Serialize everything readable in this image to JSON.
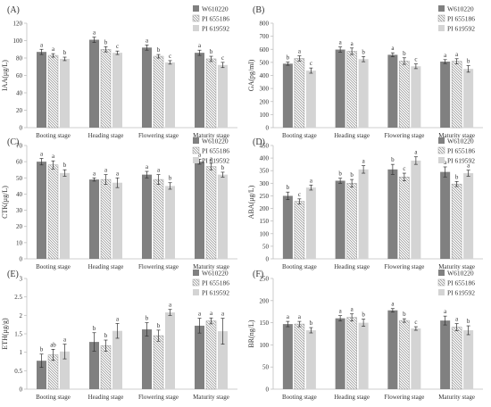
{
  "legend_labels": [
    "W610220",
    "PI 655186",
    "PI 619592"
  ],
  "chart_data": [
    {
      "panel": "(A)",
      "type": "bar",
      "categories": [
        "Booting stage",
        "Heading stage",
        "Flowering stage",
        "Maturity stage"
      ],
      "ylabel": "IAA(μg/L)",
      "ylim": [
        0,
        120
      ],
      "yticks": [
        0,
        20,
        40,
        60,
        80,
        100,
        120
      ],
      "legend": "top-right",
      "series": [
        {
          "name": "W610220",
          "values": [
            87,
            101,
            92,
            86
          ],
          "errors": [
            3,
            3,
            3,
            3
          ],
          "letters": [
            "a",
            "a",
            "a",
            "a"
          ]
        },
        {
          "name": "PI 655186",
          "values": [
            83,
            90,
            82,
            79
          ],
          "errors": [
            2,
            3,
            2,
            3
          ],
          "letters": [
            "a",
            "b",
            "b",
            "b"
          ]
        },
        {
          "name": "PI 619592",
          "values": [
            79,
            86,
            75,
            72
          ],
          "errors": [
            2,
            2,
            2,
            3
          ],
          "letters": [
            "b",
            "c",
            "c",
            "c"
          ]
        }
      ]
    },
    {
      "panel": "(B)",
      "type": "bar",
      "categories": [
        "Booting stage",
        "Heading stage",
        "Flowering stage",
        "Maturity stage"
      ],
      "ylabel": "GA(pg/ml)",
      "ylim": [
        0,
        800
      ],
      "yticks": [
        0,
        100,
        200,
        300,
        400,
        500,
        600,
        700,
        800
      ],
      "legend": "top-right",
      "series": [
        {
          "name": "W610220",
          "values": [
            490,
            598,
            558,
            506
          ],
          "errors": [
            12,
            20,
            15,
            15
          ],
          "letters": [
            "b",
            "a",
            "a",
            "a"
          ]
        },
        {
          "name": "PI 655186",
          "values": [
            530,
            585,
            510,
            508
          ],
          "errors": [
            20,
            25,
            25,
            20
          ],
          "letters": [
            "a",
            "a",
            "b",
            "a"
          ]
        },
        {
          "name": "PI 619592",
          "values": [
            437,
            525,
            470,
            450
          ],
          "errors": [
            20,
            20,
            18,
            25
          ],
          "letters": [
            "c",
            "b",
            "c",
            "b"
          ]
        }
      ]
    },
    {
      "panel": "(C)",
      "type": "bar",
      "categories": [
        "Booting stage",
        "Heading stage",
        "Flowering stage",
        "Maturity stage"
      ],
      "ylabel": "CTK(μg/L)",
      "ylim": [
        0,
        70
      ],
      "yticks": [
        0,
        10,
        20,
        30,
        40,
        50,
        60,
        70
      ],
      "legend": "top-right",
      "series": [
        {
          "name": "W610220",
          "values": [
            60,
            49,
            52,
            60
          ],
          "errors": [
            2,
            1,
            2,
            1.5
          ],
          "letters": [
            "a",
            "a",
            "a",
            "a"
          ]
        },
        {
          "name": "PI 655186",
          "values": [
            58,
            49,
            49,
            57
          ],
          "errors": [
            2.5,
            3,
            3,
            2
          ],
          "letters": [
            "a",
            "a",
            "a",
            "a"
          ]
        },
        {
          "name": "PI 619592",
          "values": [
            53,
            47,
            45,
            52
          ],
          "errors": [
            2,
            3,
            2,
            1.5
          ],
          "letters": [
            "b",
            "a",
            "b",
            "b"
          ]
        }
      ]
    },
    {
      "panel": "(D)",
      "type": "bar",
      "categories": [
        "Booting stage",
        "Heading stage",
        "Flowering stage",
        "Maturity stage"
      ],
      "ylabel": "ABA(μg/L)",
      "ylim": [
        0,
        450
      ],
      "yticks": [
        0,
        50,
        100,
        150,
        200,
        250,
        300,
        350,
        400,
        450
      ],
      "legend": "top-right",
      "series": [
        {
          "name": "W610220",
          "values": [
            250,
            310,
            355,
            345
          ],
          "errors": [
            15,
            10,
            20,
            20
          ],
          "letters": [
            "b",
            "b",
            "b",
            "a"
          ]
        },
        {
          "name": "PI 655186",
          "values": [
            228,
            300,
            325,
            297
          ],
          "errors": [
            10,
            15,
            15,
            10
          ],
          "letters": [
            "c",
            "b",
            "c",
            "b"
          ]
        },
        {
          "name": "PI 619592",
          "values": [
            283,
            355,
            390,
            340
          ],
          "errors": [
            10,
            15,
            15,
            12
          ],
          "letters": [
            "a",
            "a",
            "a",
            "a"
          ]
        }
      ]
    },
    {
      "panel": "(E)",
      "type": "bar",
      "categories": [
        "Booting stage",
        "Heading stage",
        "Flowering stage",
        "Maturity stage"
      ],
      "ylabel": "ETH(μg/g)",
      "ylim": [
        0,
        3
      ],
      "yticks": [
        0,
        0.5,
        1,
        1.5,
        2,
        2.5,
        3
      ],
      "legend": "top-right",
      "series": [
        {
          "name": "W610220",
          "values": [
            0.77,
            1.28,
            1.62,
            1.72
          ],
          "errors": [
            0.18,
            0.25,
            0.18,
            0.2
          ],
          "letters": [
            "b",
            "b",
            "b",
            "a"
          ]
        },
        {
          "name": "PI 655186",
          "values": [
            0.93,
            1.18,
            1.45,
            1.85
          ],
          "errors": [
            0.15,
            0.15,
            0.15,
            0.08
          ],
          "letters": [
            "ab",
            "b",
            "b",
            "a"
          ]
        },
        {
          "name": "PI 619592",
          "values": [
            1.02,
            1.58,
            2.08,
            1.57
          ],
          "errors": [
            0.2,
            0.2,
            0.08,
            0.35
          ],
          "letters": [
            "a",
            "a",
            "a",
            "a"
          ]
        }
      ]
    },
    {
      "panel": "(F)",
      "type": "bar",
      "categories": [
        "Booting stage",
        "Heading stage",
        "Flowering stage",
        "Maturity stage"
      ],
      "ylabel": "BR(ng/L)",
      "ylim": [
        0,
        250
      ],
      "yticks": [
        0,
        50,
        100,
        150,
        200,
        250
      ],
      "legend": "top-right",
      "series": [
        {
          "name": "W610220",
          "values": [
            147,
            160,
            178,
            155
          ],
          "errors": [
            6,
            6,
            4,
            10
          ],
          "letters": [
            "a",
            "a",
            "a",
            "a"
          ]
        },
        {
          "name": "PI 655186",
          "values": [
            147,
            162,
            155,
            140
          ],
          "errors": [
            6,
            8,
            4,
            8
          ],
          "letters": [
            "a",
            "a",
            "b",
            "a"
          ]
        },
        {
          "name": "PI 619592",
          "values": [
            133,
            150,
            137,
            133
          ],
          "errors": [
            6,
            8,
            4,
            10
          ],
          "letters": [
            "b",
            "b",
            "c",
            "b"
          ]
        }
      ]
    }
  ],
  "colors": {
    "series_0": "#808080",
    "series_1_hatch": "#8a8a8a",
    "series_2": "#d4d4d4",
    "axis": "#bfbfbf",
    "text": "#333333"
  }
}
